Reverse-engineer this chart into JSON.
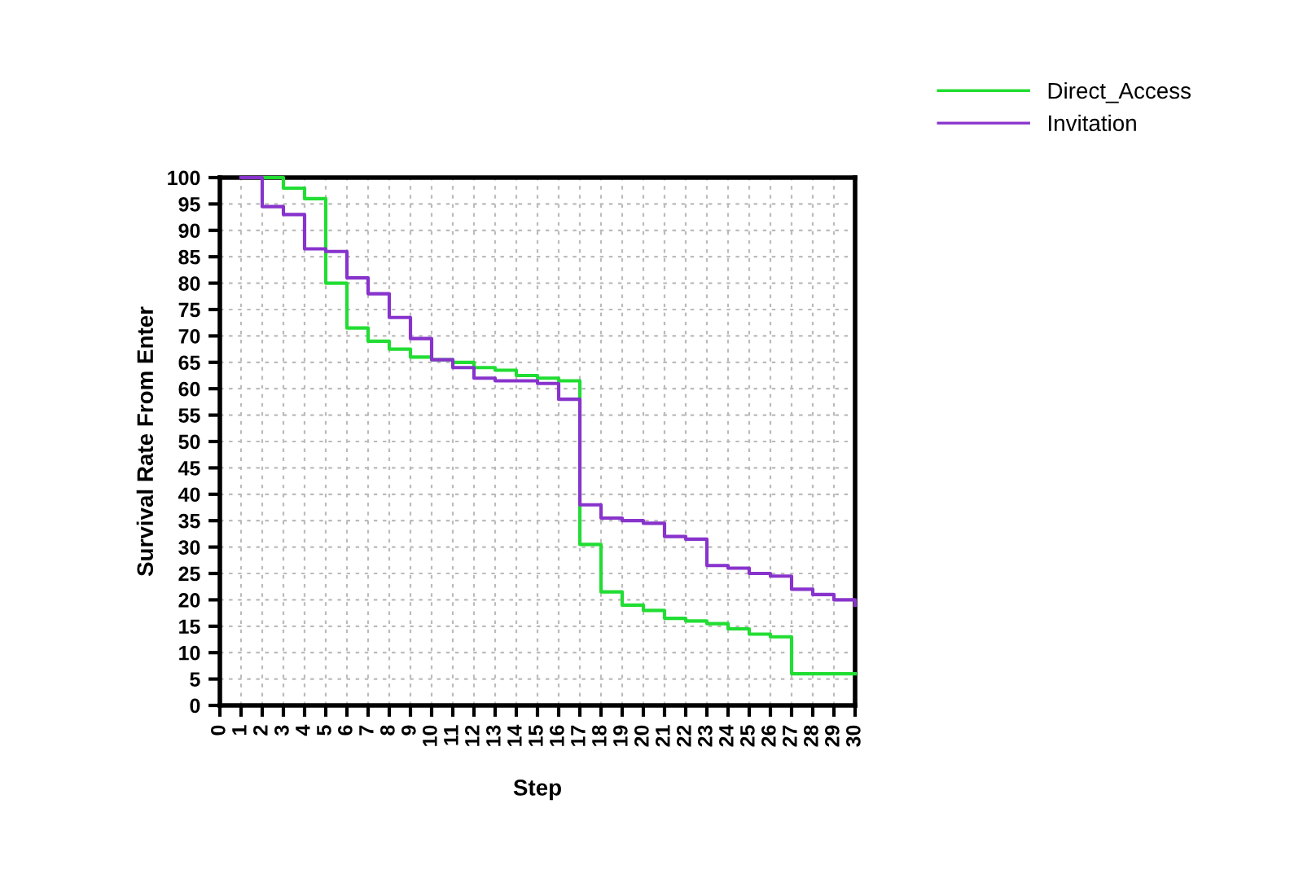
{
  "chart_data": {
    "type": "step",
    "xlabel": "Step",
    "ylabel": "Survival Rate From Enter",
    "x": [
      1,
      2,
      3,
      4,
      5,
      6,
      7,
      8,
      9,
      10,
      11,
      12,
      13,
      14,
      15,
      16,
      17,
      18,
      19,
      20,
      21,
      22,
      23,
      24,
      25,
      26,
      27,
      28,
      29,
      30
    ],
    "series": [
      {
        "name": "Direct_Access",
        "color": "#22dd33",
        "values": [
          100,
          100,
          98,
          96,
          80,
          71.5,
          69,
          67.5,
          66,
          65.5,
          65,
          64,
          63.5,
          62.5,
          62,
          61.5,
          30.5,
          21.5,
          19,
          18,
          16.5,
          16,
          15.5,
          14.5,
          13.5,
          13,
          6,
          6,
          6,
          6
        ]
      },
      {
        "name": "Invitation",
        "color": "#8833cc",
        "values": [
          100,
          94.5,
          93,
          86.5,
          86,
          81,
          78,
          73.5,
          69.5,
          65.5,
          64,
          62,
          61.5,
          61.5,
          61,
          58,
          38,
          35.5,
          35,
          34.5,
          32,
          31.5,
          26.5,
          26,
          25,
          24.5,
          22,
          21,
          20,
          19
        ]
      }
    ],
    "xlim": [
      0,
      30
    ],
    "xticks": [
      0,
      1,
      2,
      3,
      4,
      5,
      6,
      7,
      8,
      9,
      10,
      11,
      12,
      13,
      14,
      15,
      16,
      17,
      18,
      19,
      20,
      21,
      22,
      23,
      24,
      25,
      26,
      27,
      28,
      29,
      30
    ],
    "ylim": [
      0,
      100
    ],
    "yticks": [
      0,
      5,
      10,
      15,
      20,
      25,
      30,
      35,
      40,
      45,
      50,
      55,
      60,
      65,
      70,
      75,
      80,
      85,
      90,
      95,
      100
    ],
    "grid": true,
    "legend": "top right",
    "line_style": "solid",
    "marker": "none"
  }
}
